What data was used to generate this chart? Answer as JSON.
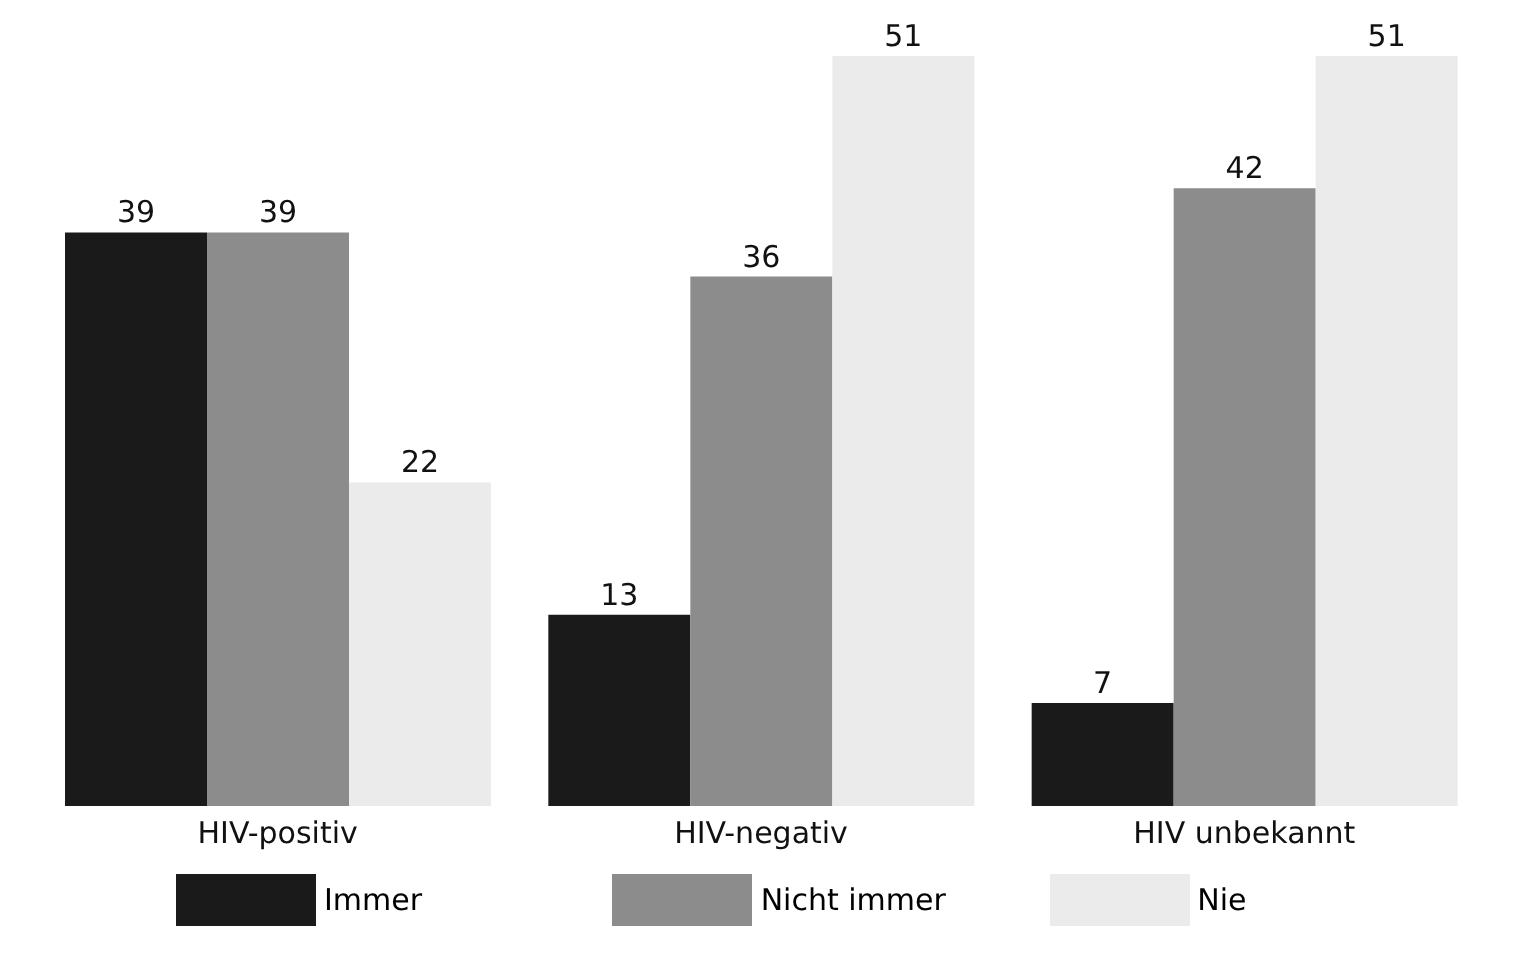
{
  "chart_data": {
    "type": "bar",
    "categories": [
      "HIV-positiv",
      "HIV-negativ",
      "HIV unbekannt"
    ],
    "series": [
      {
        "name": "Immer",
        "color": "#1a1a1a",
        "values": [
          39,
          13,
          7
        ]
      },
      {
        "name": "Nicht immer",
        "color": "#8c8c8c",
        "values": [
          39,
          36,
          42
        ]
      },
      {
        "name": "Nie",
        "color": "#ebebeb",
        "values": [
          22,
          51,
          51
        ]
      }
    ],
    "data_labels": true,
    "legend": "bottom",
    "grid": false
  }
}
